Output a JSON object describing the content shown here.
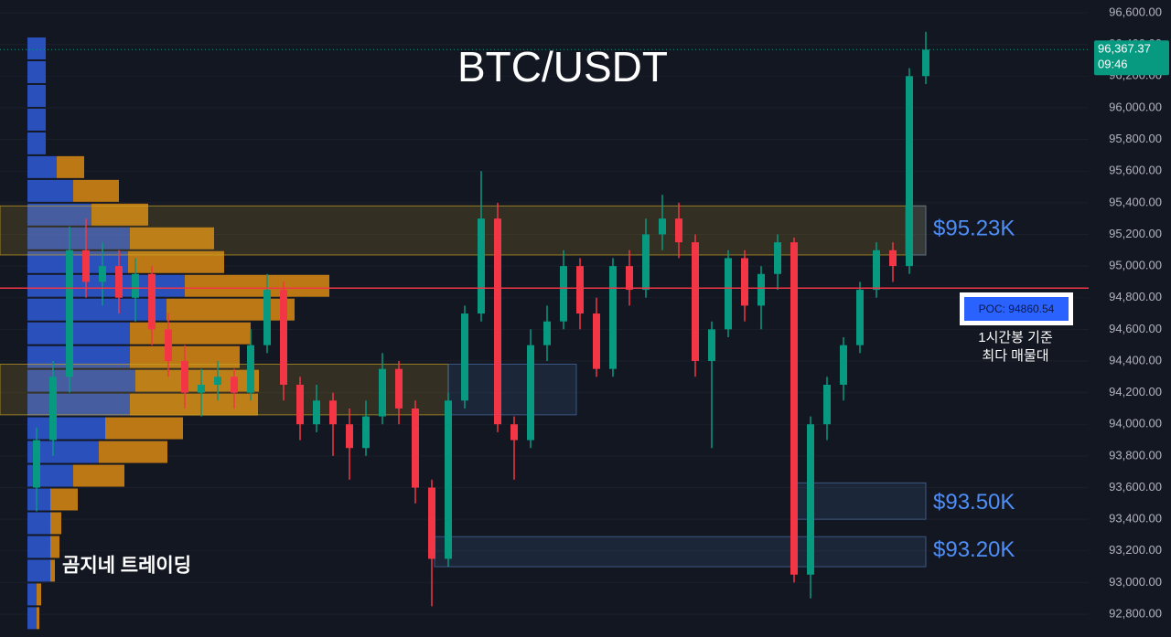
{
  "chart_data": {
    "type": "candlestick",
    "title": "BTC/USDT",
    "watermark": "곰지네 트레이딩",
    "ylim": [
      92656,
      96681
    ],
    "yticks": [
      {
        "value": 92800,
        "label": "92,800.00"
      },
      {
        "value": 93000,
        "label": "93,000.00"
      },
      {
        "value": 93200,
        "label": "93,200.00"
      },
      {
        "value": 93400,
        "label": "93,400.00"
      },
      {
        "value": 93600,
        "label": "93,600.00"
      },
      {
        "value": 93800,
        "label": "93,800.00"
      },
      {
        "value": 94000,
        "label": "94,000.00"
      },
      {
        "value": 94200,
        "label": "94,200.00"
      },
      {
        "value": 94400,
        "label": "94,400.00"
      },
      {
        "value": 94600,
        "label": "94,600.00"
      },
      {
        "value": 94800,
        "label": "94,800.00"
      },
      {
        "value": 95000,
        "label": "95,000.00"
      },
      {
        "value": 95200,
        "label": "95,200.00"
      },
      {
        "value": 95400,
        "label": "95,400.00"
      },
      {
        "value": 95600,
        "label": "95,600.00"
      },
      {
        "value": 95800,
        "label": "95,800.00"
      },
      {
        "value": 96000,
        "label": "96,000.00"
      },
      {
        "value": 96200,
        "label": "96,200.00"
      },
      {
        "value": 96400,
        "label": "96,400.00"
      },
      {
        "value": 96600,
        "label": "96,600.00"
      }
    ],
    "up_color": "#089981",
    "down_color": "#f23645",
    "open": [
      93600,
      93900,
      94300,
      95100,
      94900,
      95000,
      94800,
      94950,
      94600,
      94400,
      94200,
      94250,
      94300,
      94200,
      94500,
      94850,
      94250,
      94000,
      94150,
      94000,
      93850,
      94050,
      94350,
      94100,
      93600,
      93150,
      94150,
      94700,
      95300,
      94000,
      93900,
      94500,
      94650,
      95000,
      94700,
      94350,
      95000,
      94850,
      95200,
      95300,
      95150,
      94400,
      94600,
      95050,
      94750,
      94950,
      95150,
      93050,
      94000,
      94250,
      94500,
      94850,
      95100,
      95000,
      96200
    ],
    "high": [
      93980,
      94400,
      95250,
      95300,
      95150,
      95100,
      95050,
      95000,
      94700,
      94500,
      94350,
      94400,
      94350,
      94600,
      94950,
      94900,
      94300,
      94250,
      94200,
      94100,
      94150,
      94450,
      94400,
      94150,
      93650,
      94200,
      94750,
      95600,
      95400,
      94050,
      94600,
      94750,
      95100,
      95050,
      94800,
      95050,
      95100,
      95300,
      95450,
      95400,
      95200,
      94650,
      95100,
      95100,
      95000,
      95200,
      95180,
      94050,
      94300,
      94550,
      94900,
      95150,
      95150,
      96250,
      96480
    ],
    "low": [
      93450,
      93800,
      94200,
      94800,
      94750,
      94700,
      94650,
      94500,
      94300,
      94100,
      94050,
      94150,
      94100,
      94150,
      94450,
      94150,
      93900,
      93950,
      93800,
      93650,
      93800,
      94000,
      94000,
      93500,
      92850,
      93100,
      94100,
      94650,
      93950,
      93650,
      93850,
      94400,
      94600,
      94600,
      94300,
      94300,
      94750,
      94800,
      95100,
      95050,
      94300,
      93850,
      94550,
      94650,
      94600,
      94850,
      93000,
      92900,
      93900,
      94150,
      94450,
      94800,
      94900,
      94950,
      96150
    ],
    "close": [
      93900,
      94300,
      95100,
      94900,
      95000,
      94800,
      94950,
      94600,
      94400,
      94200,
      94250,
      94300,
      94200,
      94500,
      94850,
      94250,
      94000,
      94150,
      94000,
      93850,
      94050,
      94350,
      94100,
      93600,
      93150,
      94150,
      94700,
      95300,
      94000,
      93900,
      94500,
      94650,
      95000,
      94700,
      94350,
      95000,
      94850,
      95200,
      95300,
      95150,
      94400,
      94600,
      95050,
      94750,
      94950,
      95150,
      93050,
      94000,
      94250,
      94500,
      94850,
      95100,
      95000,
      96200,
      96367.37
    ],
    "last_price": {
      "value": 96367.37,
      "label": "96,367.37"
    },
    "last_time": "09:46",
    "poc": {
      "value": 94860.54,
      "label": "POC: 94860.54",
      "color": "#f23645"
    },
    "poc_note": [
      "1시간봉 기준",
      "최다 매물대"
    ],
    "price_labels": [
      {
        "value": 95230,
        "label": "$95.23K"
      },
      {
        "value": 93500,
        "label": "$93.50K"
      },
      {
        "value": 93200,
        "label": "$93.20K"
      }
    ],
    "zones": [
      {
        "range": [
          95070,
          95380
        ],
        "color": "#c9a227"
      },
      {
        "range": [
          94060,
          94380
        ],
        "color": "#c9a227"
      },
      {
        "range": [
          94060,
          94380
        ],
        "color": "#4a6fa5"
      },
      {
        "range": [
          95070,
          95380
        ],
        "color": "#4a6fa5"
      },
      {
        "range": [
          93400,
          93630
        ],
        "color": "#4a6fa5"
      },
      {
        "range": [
          93100,
          93290
        ],
        "color": "#4a6fa5"
      }
    ],
    "volume_profile": {
      "levels": [
        96300,
        96150,
        96000,
        95850,
        95700,
        95550,
        95400,
        95250,
        95100,
        94950,
        94800,
        94650,
        94500,
        94350,
        94200,
        94050,
        93900,
        93750,
        93600,
        93450,
        93300,
        93150,
        93000,
        92850,
        92700
      ],
      "row_height": 150,
      "buy": [
        20,
        20,
        20,
        20,
        20,
        32,
        50,
        70,
        112,
        110,
        172,
        152,
        112,
        112,
        118,
        112,
        85,
        78,
        50,
        25,
        25,
        25,
        25,
        10,
        10
      ],
      "sell": [
        0,
        0,
        0,
        0,
        0,
        30,
        50,
        62,
        92,
        105,
        158,
        140,
        132,
        120,
        135,
        140,
        85,
        75,
        56,
        30,
        12,
        10,
        5,
        5,
        3
      ],
      "buy_color": "#2f5bd6",
      "sell_color": "#d98a12"
    }
  }
}
